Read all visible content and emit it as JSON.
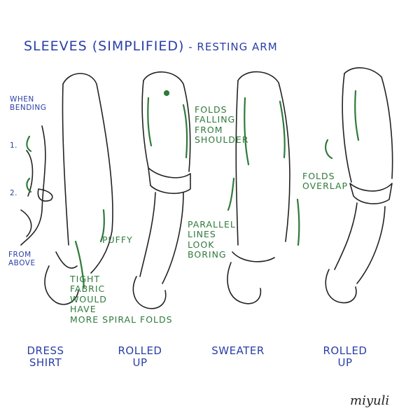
{
  "title": "Sleeves (simplified)",
  "title_suffix": " - Resting arm",
  "side_notes": {
    "when_bending": "When\nbending",
    "step_1": "1.",
    "step_2": "2.",
    "from_above": "From\nabove"
  },
  "annotations": {
    "puffy": "Puffy",
    "tight_fabric": "Tight\nfabric\nwould\nhave\nmore spiral folds",
    "folds_falling": "Folds\nfalling\nfrom\nshoulder",
    "parallel_lines": "Parallel\nlines\nlook\nboring",
    "folds_overlap": "Folds\noverlap"
  },
  "labels": {
    "dress_shirt": "Dress\nshirt",
    "rolled_up_1": "Rolled\nup",
    "sweater": "Sweater",
    "rolled_up_2": "Rolled\nup"
  },
  "signature": "miyuli",
  "colors": {
    "heading_blue": "#2a3fa8",
    "fold_green": "#2f7a3a",
    "ink": "#222222"
  }
}
